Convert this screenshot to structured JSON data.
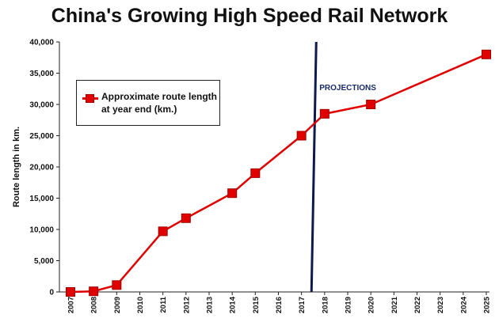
{
  "chart_data": {
    "type": "line",
    "title": "China's Growing High Speed Rail Network",
    "xlabel": "",
    "ylabel": "Route length in km.",
    "ylim": [
      0,
      40000
    ],
    "yticks": [
      "0",
      "5,000",
      "10,000",
      "15,000",
      "20,000",
      "25,000",
      "30,000",
      "35,000",
      "40,000"
    ],
    "ytick_values": [
      0,
      5000,
      10000,
      15000,
      20000,
      25000,
      30000,
      35000,
      40000
    ],
    "categories": [
      "2007",
      "2008",
      "2009",
      "2010",
      "2011",
      "2012",
      "2013",
      "2014",
      "2015",
      "2016",
      "2017",
      "2018",
      "2019",
      "2020",
      "2021",
      "2022",
      "2023",
      "2024",
      "2025"
    ],
    "series": [
      {
        "name": "Approximate route length at year end (km.)",
        "color": "#e00000",
        "points": [
          {
            "x": "2007",
            "y": 0
          },
          {
            "x": "2008",
            "y": 100
          },
          {
            "x": "2009",
            "y": 1100
          },
          {
            "x": "2011",
            "y": 9700
          },
          {
            "x": "2012",
            "y": 11800
          },
          {
            "x": "2014",
            "y": 15800
          },
          {
            "x": "2015",
            "y": 19000
          },
          {
            "x": "2017",
            "y": 25000
          },
          {
            "x": "2018",
            "y": 28500
          },
          {
            "x": "2020",
            "y": 30000
          },
          {
            "x": "2025",
            "y": 38000
          }
        ]
      }
    ],
    "annotations": [
      {
        "text": "PROJECTIONS",
        "divider_color": "#0d1b4c"
      }
    ],
    "legend_placement": "upper-left",
    "grid": false
  }
}
